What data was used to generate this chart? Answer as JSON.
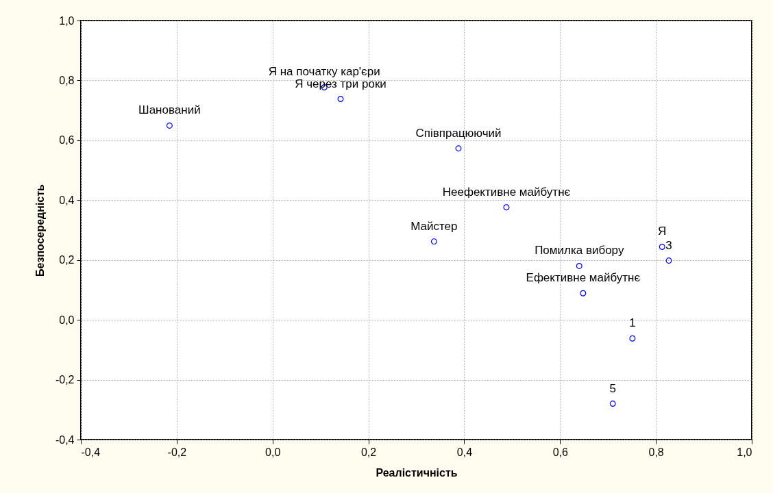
{
  "chart_data": {
    "type": "scatter",
    "xlabel": "Реалістичність",
    "ylabel": "Безпосередність",
    "x": [
      -0.215,
      0.108,
      0.142,
      0.388,
      0.488,
      0.337,
      0.64,
      0.648,
      0.813,
      0.827,
      0.751,
      0.71
    ],
    "series": [
      {
        "color": "#0000ff",
        "values": [
          0.649,
          0.777,
          0.738,
          0.573,
          0.376,
          0.262,
          0.18,
          0.089,
          0.244,
          0.198,
          -0.062,
          -0.28
        ]
      }
    ],
    "marker": "circle",
    "grid": true,
    "xlim": [
      -0.4,
      1.0
    ],
    "ylim": [
      -0.4,
      1.0
    ],
    "xticks": [
      {
        "value": -0.4,
        "label": "-0,4"
      },
      {
        "value": -0.2,
        "label": "-0,2"
      },
      {
        "value": 0,
        "label": "0,0"
      },
      {
        "value": 0.2,
        "label": "0,2"
      },
      {
        "value": 0.4,
        "label": "0,4"
      },
      {
        "value": 0.6,
        "label": "0,6"
      },
      {
        "value": 0.8,
        "label": "0,8"
      },
      {
        "value": 1.0,
        "label": "1,0"
      }
    ],
    "yticks": [
      {
        "value": -0.4,
        "label": "-0,4"
      },
      {
        "value": -0.2,
        "label": "-0,2"
      },
      {
        "value": 0,
        "label": "0,0"
      },
      {
        "value": 0.2,
        "label": "0,2"
      },
      {
        "value": 0.4,
        "label": "0,4"
      },
      {
        "value": 0.6,
        "label": "0,6"
      },
      {
        "value": 0.8,
        "label": "0,8"
      },
      {
        "value": 1.0,
        "label": "1,0"
      }
    ],
    "annotations": [
      {
        "text": "Шанований",
        "x": -0.215,
        "y": 0.649
      },
      {
        "text": "Я на початку кар'єри",
        "x": 0.108,
        "y": 0.777
      },
      {
        "text": "Я через три роки",
        "x": 0.142,
        "y": 0.738
      },
      {
        "text": "Співпрацюючий",
        "x": 0.388,
        "y": 0.573
      },
      {
        "text": "Неефективне майбутнє",
        "x": 0.488,
        "y": 0.376
      },
      {
        "text": "Майстер",
        "x": 0.337,
        "y": 0.262
      },
      {
        "text": "Помилка вибору",
        "x": 0.64,
        "y": 0.18
      },
      {
        "text": "Ефективне майбутнє",
        "x": 0.648,
        "y": 0.089
      },
      {
        "text": "Я",
        "x": 0.813,
        "y": 0.244
      },
      {
        "text": "3",
        "x": 0.827,
        "y": 0.198
      },
      {
        "text": "1",
        "x": 0.751,
        "y": -0.062
      },
      {
        "text": "5",
        "x": 0.71,
        "y": -0.28
      }
    ]
  }
}
